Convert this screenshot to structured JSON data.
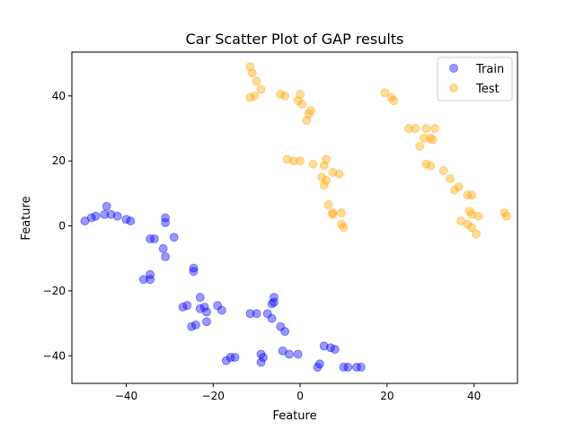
{
  "chart_data": {
    "type": "scatter",
    "title": "Car Scatter Plot of GAP results",
    "xlabel": "Feature",
    "ylabel": "Feature",
    "xlim": [
      -52.5,
      50.0
    ],
    "ylim": [
      -48.5,
      53.5
    ],
    "xticks": [
      -40,
      -20,
      0,
      20,
      40
    ],
    "yticks": [
      -40,
      -20,
      0,
      20,
      40
    ],
    "legend_position": "top-right",
    "series": [
      {
        "name": "Train",
        "color": "#0000ff",
        "points": [
          [
            -49.5,
            1.5
          ],
          [
            -48,
            2.5
          ],
          [
            -47,
            3
          ],
          [
            -45,
            3.5
          ],
          [
            -44.5,
            6
          ],
          [
            -43.5,
            3.5
          ],
          [
            -42,
            3
          ],
          [
            -40,
            2
          ],
          [
            -39,
            1.5
          ],
          [
            -31,
            2.5
          ],
          [
            -31,
            1
          ],
          [
            -29,
            -3.5
          ],
          [
            -33.5,
            -4
          ],
          [
            -34.5,
            -4
          ],
          [
            -31.5,
            -7
          ],
          [
            -31,
            -9.5
          ],
          [
            -34.5,
            -15
          ],
          [
            -34.5,
            -16.5
          ],
          [
            -36,
            -16.5
          ],
          [
            -24.5,
            -13
          ],
          [
            -24.5,
            -14
          ],
          [
            -27,
            -25
          ],
          [
            -26,
            -24.5
          ],
          [
            -23,
            -22
          ],
          [
            -23,
            -25.5
          ],
          [
            -22,
            -25
          ],
          [
            -21.5,
            -26.5
          ],
          [
            -21.5,
            -29.5
          ],
          [
            -19,
            -24.5
          ],
          [
            -18,
            -26
          ],
          [
            -25,
            -31
          ],
          [
            -24,
            -30.5
          ],
          [
            -17,
            -41.5
          ],
          [
            -16,
            -40.5
          ],
          [
            -15,
            -40.5
          ],
          [
            -11.5,
            -27
          ],
          [
            -10,
            -27
          ],
          [
            -9,
            -39.5
          ],
          [
            -9,
            -42
          ],
          [
            -8.5,
            -40.5
          ],
          [
            -6,
            -22
          ],
          [
            -6,
            -23.5
          ],
          [
            -6.5,
            -24
          ],
          [
            -7.5,
            -27
          ],
          [
            -6.5,
            -28.5
          ],
          [
            -4.5,
            -31
          ],
          [
            -3.5,
            -32.5
          ],
          [
            -4,
            -38.5
          ],
          [
            -2.5,
            -39.5
          ],
          [
            -0.5,
            -39.5
          ],
          [
            4,
            -43.5
          ],
          [
            4.5,
            -42.5
          ],
          [
            5.5,
            -37
          ],
          [
            7,
            -37.5
          ],
          [
            8,
            -38
          ],
          [
            10,
            -43.5
          ],
          [
            11,
            -43.5
          ],
          [
            13,
            -43.5
          ],
          [
            14,
            -43.5
          ]
        ]
      },
      {
        "name": "Test",
        "color": "#ffa500",
        "points": [
          [
            -11.5,
            49
          ],
          [
            -11,
            47
          ],
          [
            -10,
            44.5
          ],
          [
            -9,
            42
          ],
          [
            -10.5,
            40
          ],
          [
            -11.5,
            39.5
          ],
          [
            -4.5,
            40.5
          ],
          [
            -3.5,
            40
          ],
          [
            0,
            40.5
          ],
          [
            -0.5,
            38.5
          ],
          [
            0.5,
            37.5
          ],
          [
            2.5,
            35.5
          ],
          [
            2,
            34.5
          ],
          [
            1.5,
            32.5
          ],
          [
            -3,
            20.5
          ],
          [
            -1.5,
            20
          ],
          [
            0,
            20
          ],
          [
            3,
            19
          ],
          [
            5.5,
            18.5
          ],
          [
            6,
            20.5
          ],
          [
            7.5,
            16.5
          ],
          [
            9,
            16
          ],
          [
            5,
            15
          ],
          [
            6,
            14
          ],
          [
            5.5,
            12.5
          ],
          [
            6.5,
            6.5
          ],
          [
            7.5,
            4
          ],
          [
            7.5,
            3.5
          ],
          [
            9.5,
            4
          ],
          [
            9.5,
            0.5
          ],
          [
            10,
            -0.5
          ],
          [
            19.5,
            41
          ],
          [
            21,
            39.5
          ],
          [
            21.5,
            38.5
          ],
          [
            25,
            30
          ],
          [
            26.5,
            30
          ],
          [
            29,
            30
          ],
          [
            31,
            30
          ],
          [
            28.5,
            27
          ],
          [
            30,
            27
          ],
          [
            30.5,
            26.5
          ],
          [
            27.5,
            24.5
          ],
          [
            29,
            19
          ],
          [
            30,
            18.5
          ],
          [
            33,
            17
          ],
          [
            34.5,
            14.5
          ],
          [
            35.5,
            11
          ],
          [
            36.5,
            12
          ],
          [
            38.5,
            9.5
          ],
          [
            39.5,
            9.5
          ],
          [
            37,
            1.5
          ],
          [
            39,
            4.5
          ],
          [
            39.5,
            3.5
          ],
          [
            41,
            3
          ],
          [
            38.5,
            0.5
          ],
          [
            39.5,
            -0.5
          ],
          [
            40.5,
            -2.5
          ],
          [
            47,
            4
          ],
          [
            47.5,
            3
          ]
        ]
      }
    ]
  }
}
